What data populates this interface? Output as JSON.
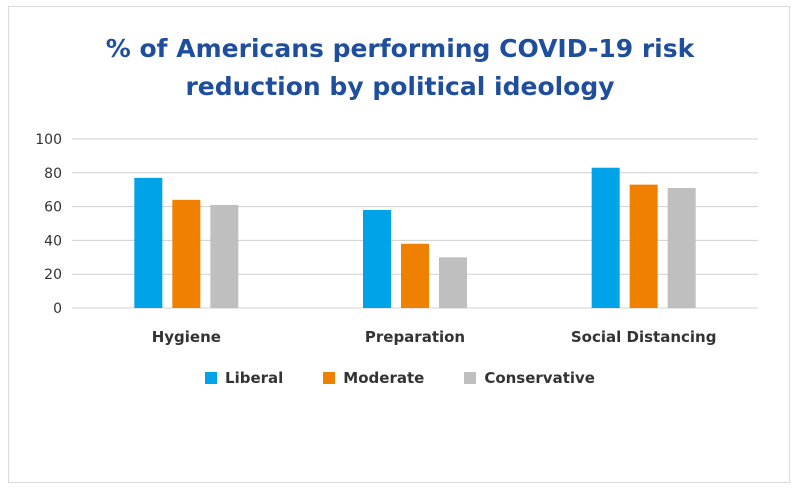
{
  "chart_data": {
    "type": "bar",
    "title_lines": [
      "% of Americans performing COVID-19 risk",
      "reduction  by political ideology"
    ],
    "categories": [
      "Hygiene",
      "Preparation",
      "Social Distancing"
    ],
    "series": [
      {
        "name": "Liberal",
        "color": "#00a2e8",
        "values": [
          77,
          58,
          83
        ]
      },
      {
        "name": "Moderate",
        "color": "#f08000",
        "values": [
          64,
          38,
          73
        ]
      },
      {
        "name": "Conservative",
        "color": "#bfbfbf",
        "values": [
          61,
          30,
          71
        ]
      }
    ],
    "ylim": [
      0,
      100
    ],
    "yticks": [
      "0",
      "20",
      "40",
      "60",
      "80",
      "100"
    ],
    "grid": true,
    "legend_position": "bottom"
  }
}
